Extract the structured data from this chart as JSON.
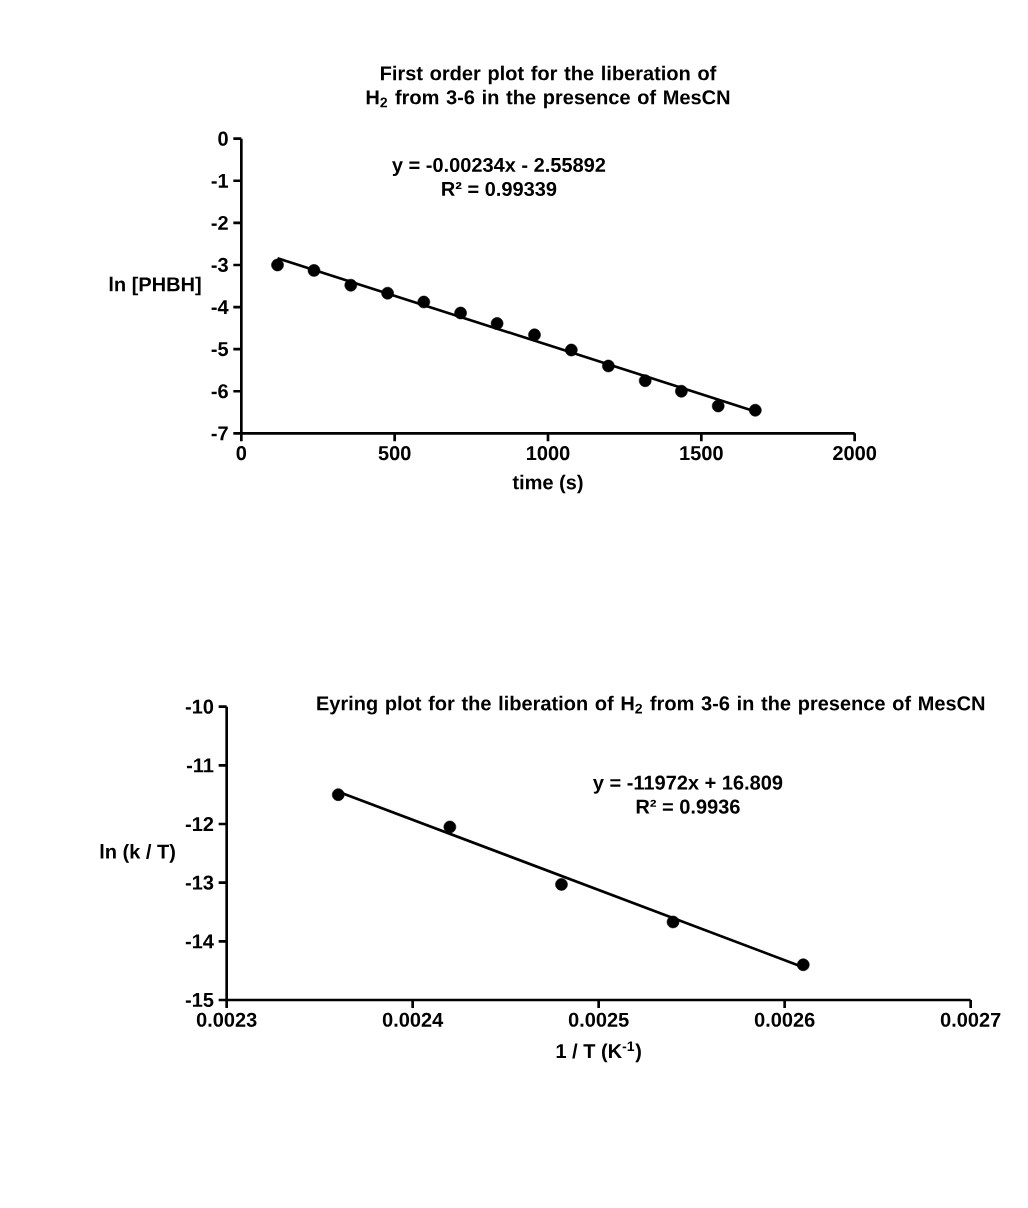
{
  "chart_data": [
    {
      "type": "scatter",
      "title": "First order plot for the liberation of H$_{2}$ from 3-6 in the presence of MesCN",
      "xlabel": "time (s)",
      "ylabel": "ln [PHBH]",
      "annotations": [
        "y = -0.00234x - 2.55892",
        "R² = 0.99339"
      ],
      "xlim": [
        0,
        2000
      ],
      "ylim": [
        -7,
        0
      ],
      "xticks": [
        0,
        500,
        1000,
        1500,
        2000
      ],
      "yticks": [
        -7,
        -6,
        -5,
        -4,
        -3,
        -2,
        -1,
        0
      ],
      "series": [
        {
          "marker": "circle",
          "color": "#000000",
          "x": [
            118,
            237,
            357,
            477,
            595,
            715,
            834,
            956,
            1076,
            1197,
            1317,
            1435,
            1555,
            1676
          ],
          "values": [
            -3.0,
            -3.13,
            -3.48,
            -3.67,
            -3.88,
            -4.14,
            -4.39,
            -4.66,
            -5.02,
            -5.4,
            -5.75,
            -6.0,
            -6.35,
            -6.45
          ]
        },
        {
          "type": "line",
          "marker": "none",
          "color": "#000000",
          "x": [
            118,
            1676
          ],
          "values": [
            -2.84,
            -6.48
          ]
        }
      ]
    },
    {
      "type": "scatter",
      "title": "Eyring plot for the liberation of H$_{2}$ from 3-6 in the presence of MesCN",
      "xlabel": "1 / T (K$^{-1}$)",
      "ylabel": "ln  (k / T)",
      "annotations": [
        "y = -11972x + 16.809",
        "R² = 0.9936"
      ],
      "xlim": [
        0.0023,
        0.0027
      ],
      "ylim": [
        -15,
        -10
      ],
      "xticks": [
        0.0023,
        0.0024,
        0.0025,
        0.0026,
        0.0027
      ],
      "yticks": [
        -15,
        -14,
        -13,
        -12,
        -11,
        -10
      ],
      "series": [
        {
          "marker": "circle",
          "color": "#000000",
          "x": [
            0.00236,
            0.00242,
            0.00248,
            0.00254,
            0.00261
          ],
          "values": [
            -11.5,
            -12.05,
            -13.03,
            -13.67,
            -14.4
          ]
        },
        {
          "type": "line",
          "marker": "none",
          "color": "#000000",
          "x": [
            0.00236,
            0.00261
          ],
          "values": [
            -11.45,
            -14.44
          ]
        }
      ]
    }
  ]
}
